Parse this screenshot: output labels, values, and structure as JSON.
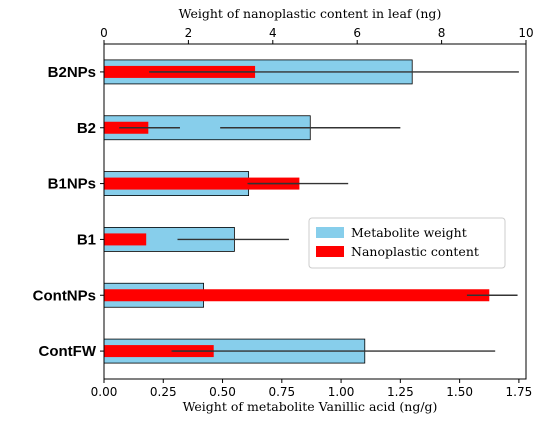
{
  "chart_data": {
    "type": "bar",
    "orientation": "horizontal",
    "categories": [
      "B2NPs",
      "B2",
      "B1NPs",
      "B1",
      "ContNPs",
      "ContFW"
    ],
    "xlabel_bottom": "Weight of metabolite Vanillic acid (ng/g)",
    "xlabel_top": "Weight of nanoplastic content in leaf (ng)",
    "xlim_bottom": [
      0,
      1.78
    ],
    "xlim_top": [
      0,
      10
    ],
    "xticks_bottom": [
      "0.00",
      "0.25",
      "0.50",
      "0.75",
      "1.00",
      "1.25",
      "1.50",
      "1.75"
    ],
    "xticks_top": [
      "0",
      "2",
      "4",
      "6",
      "8",
      "10"
    ],
    "legend_position": "center-right",
    "series": [
      {
        "name": "Metabolite weight",
        "axis": "bottom",
        "color": "#87ceeb",
        "values": [
          1.3,
          0.87,
          0.61,
          0.55,
          0.42,
          1.1
        ],
        "error_low": [
          0.19,
          0.49,
          0.61,
          0.31,
          0.42,
          0.29
        ],
        "error_high": [
          1.75,
          1.25,
          1.03,
          0.78,
          0.42,
          1.65
        ]
      },
      {
        "name": "Nanoplastic content",
        "axis": "top",
        "color": "#ff0000",
        "values": [
          3.58,
          1.05,
          4.63,
          1.0,
          9.13,
          2.6
        ],
        "error_low": [
          1.1,
          0.36,
          3.4,
          1.0,
          8.6,
          1.6
        ],
        "error_high": [
          3.58,
          1.8,
          4.63,
          1.0,
          9.8,
          2.6
        ]
      }
    ],
    "legend": [
      "Metabolite weight",
      "Nanoplastic content"
    ]
  }
}
